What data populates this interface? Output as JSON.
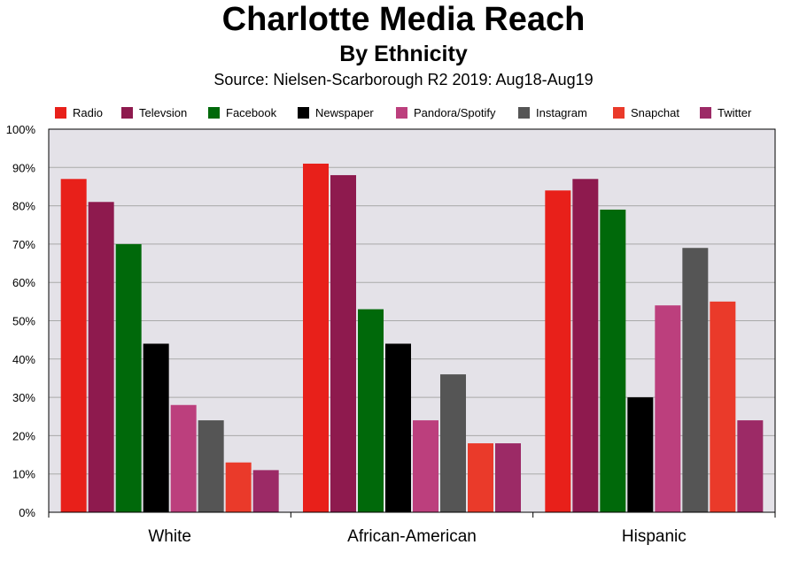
{
  "chart_data": {
    "type": "bar",
    "title": "Charlotte Media Reach",
    "subtitle": "By Ethnicity",
    "source": "Source: Nielsen-Scarborough R2 2019: Aug18-Aug19",
    "categories": [
      "White",
      "African-American",
      "Hispanic"
    ],
    "ylim": [
      0,
      100
    ],
    "y_ticks": [
      "0%",
      "10%",
      "20%",
      "30%",
      "40%",
      "50%",
      "60%",
      "70%",
      "80%",
      "90%",
      "100%"
    ],
    "grid": true,
    "legend_position": "top",
    "series": [
      {
        "name": "Radio",
        "color": "#e8201a",
        "values": [
          87,
          91,
          84
        ]
      },
      {
        "name": "Televsion",
        "color": "#8e1a4e",
        "values": [
          81,
          88,
          87
        ]
      },
      {
        "name": "Facebook",
        "color": "#00690a",
        "values": [
          70,
          53,
          79
        ]
      },
      {
        "name": "Newspaper",
        "color": "#000000",
        "values": [
          44,
          44,
          30
        ]
      },
      {
        "name": "Pandora/Spotify",
        "color": "#bc3f7d",
        "values": [
          28,
          24,
          54
        ]
      },
      {
        "name": "Instagram",
        "color": "#555555",
        "values": [
          24,
          36,
          69
        ]
      },
      {
        "name": "Snapchat",
        "color": "#ea3a2a",
        "values": [
          13,
          18,
          55
        ]
      },
      {
        "name": "Twitter",
        "color": "#9c2a66",
        "values": [
          11,
          18,
          24
        ]
      }
    ],
    "plot_background": "#e4e2e8"
  }
}
